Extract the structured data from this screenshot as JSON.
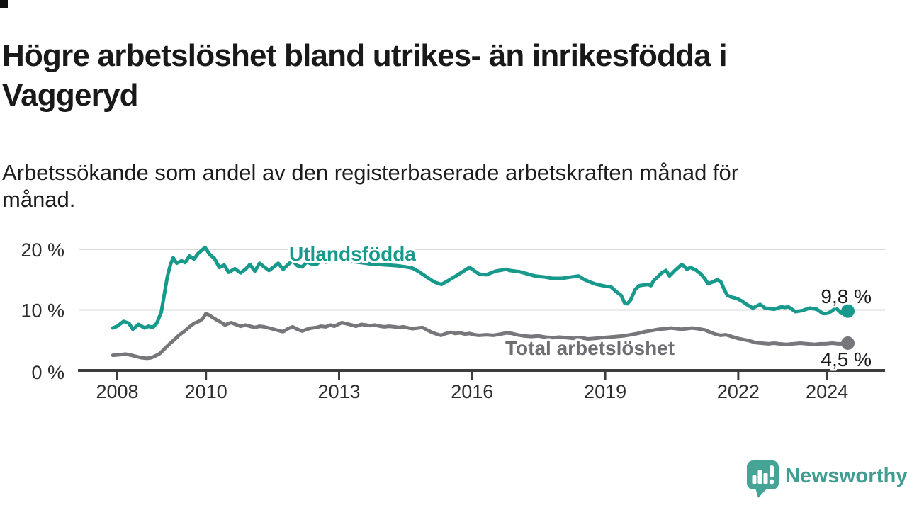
{
  "header": {
    "title": "Högre arbetslöshet bland utrikes- än inrikesfödda i\nVaggeryd",
    "subtitle": "Arbetssökande som andel av den registerbaserade arbetskraften månad för\nmånad."
  },
  "branding": {
    "logo_text": "Newsworthy",
    "logo_icon": "newsworthy-speech-bubble-bar-chart-icon",
    "logo_text_color": "#3f9d92",
    "logo_icon_color": "#46a497"
  },
  "colors": {
    "background": "#ffffff",
    "grid": "#d9d9d9",
    "axis": "#3d3d3d",
    "axis_text": "#2d2d2d",
    "value_label_text": "#1a1a1a",
    "series_utlandsfodda": "#17998b",
    "series_total": "#76767b",
    "series_total_label": "#6d6d72"
  },
  "chart_data": {
    "type": "line",
    "title": "Högre arbetslöshet bland utrikes- än inrikesfödda i Vaggeryd",
    "subtitle": "Arbetssökande som andel av den registerbaserade arbetskraften månad för månad.",
    "grid": "horizontal",
    "legend_position": "inline-labels",
    "x_axis": {
      "ticks": [
        2008,
        2010,
        2013,
        2016,
        2019,
        2022,
        2024
      ],
      "tick_labels": [
        "2008",
        "2010",
        "2013",
        "2016",
        "2019",
        "2022",
        "2024"
      ],
      "range": [
        2007.9,
        2024.6
      ]
    },
    "y_axis": {
      "unit": "%",
      "ticks": [
        0,
        10,
        20
      ],
      "tick_labels": [
        "0 %",
        "10 %",
        "20 %"
      ],
      "range": [
        0,
        21.5
      ]
    },
    "series": [
      {
        "name": "Total arbetslöshet",
        "color": "#76767b",
        "end_value": 4.5,
        "end_label": "4,5 %",
        "points": [
          [
            2007.9,
            2.5
          ],
          [
            2008.06,
            2.6
          ],
          [
            2008.19,
            2.7
          ],
          [
            2008.32,
            2.5
          ],
          [
            2008.43,
            2.3
          ],
          [
            2008.54,
            2.1
          ],
          [
            2008.67,
            2.0
          ],
          [
            2008.77,
            2.1
          ],
          [
            2008.86,
            2.4
          ],
          [
            2008.96,
            2.8
          ],
          [
            2009.07,
            3.6
          ],
          [
            2009.18,
            4.4
          ],
          [
            2009.29,
            5.1
          ],
          [
            2009.39,
            5.8
          ],
          [
            2009.5,
            6.4
          ],
          [
            2009.63,
            7.2
          ],
          [
            2009.74,
            7.8
          ],
          [
            2009.84,
            8.1
          ],
          [
            2009.92,
            8.5
          ],
          [
            2010.0,
            9.4
          ],
          [
            2010.08,
            9.1
          ],
          [
            2010.16,
            8.7
          ],
          [
            2010.25,
            8.3
          ],
          [
            2010.35,
            7.9
          ],
          [
            2010.43,
            7.5
          ],
          [
            2010.49,
            7.7
          ],
          [
            2010.57,
            7.9
          ],
          [
            2010.67,
            7.6
          ],
          [
            2010.78,
            7.3
          ],
          [
            2010.89,
            7.5
          ],
          [
            2010.99,
            7.3
          ],
          [
            2011.1,
            7.1
          ],
          [
            2011.21,
            7.3
          ],
          [
            2011.31,
            7.2
          ],
          [
            2011.42,
            7.0
          ],
          [
            2011.53,
            6.8
          ],
          [
            2011.63,
            6.6
          ],
          [
            2011.74,
            6.4
          ],
          [
            2011.85,
            6.9
          ],
          [
            2011.95,
            7.2
          ],
          [
            2012.06,
            6.8
          ],
          [
            2012.17,
            6.5
          ],
          [
            2012.27,
            6.8
          ],
          [
            2012.38,
            7.0
          ],
          [
            2012.49,
            7.1
          ],
          [
            2012.59,
            7.3
          ],
          [
            2012.7,
            7.2
          ],
          [
            2012.81,
            7.5
          ],
          [
            2012.89,
            7.3
          ],
          [
            2012.98,
            7.6
          ],
          [
            2013.06,
            7.9
          ],
          [
            2013.18,
            7.7
          ],
          [
            2013.29,
            7.5
          ],
          [
            2013.38,
            7.3
          ],
          [
            2013.5,
            7.6
          ],
          [
            2013.61,
            7.5
          ],
          [
            2013.7,
            7.4
          ],
          [
            2013.81,
            7.5
          ],
          [
            2013.93,
            7.3
          ],
          [
            2014.02,
            7.2
          ],
          [
            2014.13,
            7.3
          ],
          [
            2014.25,
            7.2
          ],
          [
            2014.34,
            7.1
          ],
          [
            2014.45,
            7.2
          ],
          [
            2014.57,
            7.0
          ],
          [
            2014.66,
            6.9
          ],
          [
            2014.77,
            7.0
          ],
          [
            2014.88,
            7.1
          ],
          [
            2014.98,
            6.7
          ],
          [
            2015.09,
            6.3
          ],
          [
            2015.2,
            6.0
          ],
          [
            2015.3,
            5.8
          ],
          [
            2015.41,
            6.1
          ],
          [
            2015.52,
            6.3
          ],
          [
            2015.62,
            6.1
          ],
          [
            2015.73,
            6.2
          ],
          [
            2015.84,
            6.0
          ],
          [
            2015.94,
            6.1
          ],
          [
            2016.05,
            5.9
          ],
          [
            2016.16,
            5.8
          ],
          [
            2016.32,
            5.9
          ],
          [
            2016.48,
            5.8
          ],
          [
            2016.64,
            6.0
          ],
          [
            2016.77,
            6.2
          ],
          [
            2016.9,
            6.1
          ],
          [
            2017.01,
            5.9
          ],
          [
            2017.17,
            5.7
          ],
          [
            2017.33,
            5.6
          ],
          [
            2017.49,
            5.7
          ],
          [
            2017.65,
            5.5
          ],
          [
            2017.81,
            5.4
          ],
          [
            2017.97,
            5.5
          ],
          [
            2018.13,
            5.4
          ],
          [
            2018.29,
            5.3
          ],
          [
            2018.45,
            5.4
          ],
          [
            2018.61,
            5.2
          ],
          [
            2018.77,
            5.3
          ],
          [
            2018.93,
            5.4
          ],
          [
            2019.09,
            5.5
          ],
          [
            2019.25,
            5.6
          ],
          [
            2019.41,
            5.7
          ],
          [
            2019.57,
            5.9
          ],
          [
            2019.73,
            6.1
          ],
          [
            2019.89,
            6.4
          ],
          [
            2020.05,
            6.6
          ],
          [
            2020.21,
            6.8
          ],
          [
            2020.37,
            6.9
          ],
          [
            2020.48,
            7.0
          ],
          [
            2020.61,
            6.9
          ],
          [
            2020.72,
            6.8
          ],
          [
            2020.84,
            6.9
          ],
          [
            2020.96,
            7.0
          ],
          [
            2021.08,
            6.9
          ],
          [
            2021.24,
            6.7
          ],
          [
            2021.37,
            6.3
          ],
          [
            2021.48,
            6.0
          ],
          [
            2021.6,
            5.8
          ],
          [
            2021.72,
            5.9
          ],
          [
            2021.85,
            5.6
          ],
          [
            2021.99,
            5.3
          ],
          [
            2022.12,
            5.1
          ],
          [
            2022.25,
            4.9
          ],
          [
            2022.39,
            4.6
          ],
          [
            2022.52,
            4.5
          ],
          [
            2022.68,
            4.4
          ],
          [
            2022.81,
            4.5
          ],
          [
            2022.92,
            4.4
          ],
          [
            2023.08,
            4.3
          ],
          [
            2023.24,
            4.4
          ],
          [
            2023.4,
            4.5
          ],
          [
            2023.56,
            4.4
          ],
          [
            2023.72,
            4.3
          ],
          [
            2023.85,
            4.4
          ],
          [
            2023.97,
            4.4
          ],
          [
            2024.12,
            4.5
          ],
          [
            2024.25,
            4.4
          ],
          [
            2024.36,
            4.4
          ],
          [
            2024.47,
            4.5
          ]
        ]
      },
      {
        "name": "Utlandsfödda",
        "color": "#17998b",
        "end_value": 9.8,
        "end_label": "9,8 %",
        "points": [
          [
            2007.9,
            7.0
          ],
          [
            2008.0,
            7.3
          ],
          [
            2008.14,
            8.1
          ],
          [
            2008.26,
            7.8
          ],
          [
            2008.35,
            6.8
          ],
          [
            2008.48,
            7.6
          ],
          [
            2008.62,
            7.0
          ],
          [
            2008.7,
            7.3
          ],
          [
            2008.8,
            7.1
          ],
          [
            2008.89,
            7.8
          ],
          [
            2008.99,
            9.6
          ],
          [
            2009.07,
            13.0
          ],
          [
            2009.13,
            15.5
          ],
          [
            2009.2,
            17.5
          ],
          [
            2009.26,
            18.6
          ],
          [
            2009.34,
            17.7
          ],
          [
            2009.45,
            18.1
          ],
          [
            2009.53,
            17.8
          ],
          [
            2009.63,
            18.9
          ],
          [
            2009.73,
            18.4
          ],
          [
            2009.82,
            19.3
          ],
          [
            2009.9,
            19.8
          ],
          [
            2009.98,
            20.3
          ],
          [
            2010.09,
            19.1
          ],
          [
            2010.19,
            18.5
          ],
          [
            2010.3,
            17.0
          ],
          [
            2010.41,
            17.4
          ],
          [
            2010.51,
            16.2
          ],
          [
            2010.65,
            16.8
          ],
          [
            2010.78,
            16.1
          ],
          [
            2010.89,
            16.7
          ],
          [
            2010.99,
            17.5
          ],
          [
            2011.1,
            16.4
          ],
          [
            2011.21,
            17.7
          ],
          [
            2011.31,
            17.1
          ],
          [
            2011.42,
            16.5
          ],
          [
            2011.53,
            17.1
          ],
          [
            2011.63,
            17.7
          ],
          [
            2011.74,
            16.7
          ],
          [
            2011.85,
            17.5
          ],
          [
            2011.95,
            18.1
          ],
          [
            2012.06,
            17.3
          ],
          [
            2012.17,
            17.1
          ],
          [
            2012.27,
            17.9
          ],
          [
            2012.38,
            17.6
          ],
          [
            2012.49,
            17.5
          ],
          [
            2012.59,
            18.2
          ],
          [
            2012.7,
            17.9
          ],
          [
            2012.81,
            18.0
          ],
          [
            2012.89,
            18.5
          ],
          [
            2013.1,
            18.2
          ],
          [
            2013.3,
            18.0
          ],
          [
            2013.5,
            17.8
          ],
          [
            2013.7,
            17.6
          ],
          [
            2013.9,
            17.5
          ],
          [
            2014.1,
            17.4
          ],
          [
            2014.3,
            17.3
          ],
          [
            2014.5,
            17.1
          ],
          [
            2014.65,
            16.9
          ],
          [
            2014.8,
            16.3
          ],
          [
            2015.0,
            15.3
          ],
          [
            2015.15,
            14.6
          ],
          [
            2015.31,
            14.2
          ],
          [
            2015.5,
            15.0
          ],
          [
            2015.7,
            15.9
          ],
          [
            2015.94,
            17.0
          ],
          [
            2016.16,
            15.9
          ],
          [
            2016.32,
            15.8
          ],
          [
            2016.53,
            16.4
          ],
          [
            2016.77,
            16.7
          ],
          [
            2016.85,
            16.5
          ],
          [
            2017.06,
            16.3
          ],
          [
            2017.22,
            16.0
          ],
          [
            2017.41,
            15.6
          ],
          [
            2017.65,
            15.4
          ],
          [
            2017.81,
            15.2
          ],
          [
            2018.02,
            15.2
          ],
          [
            2018.21,
            15.4
          ],
          [
            2018.4,
            15.6
          ],
          [
            2018.53,
            15.0
          ],
          [
            2018.69,
            14.5
          ],
          [
            2018.81,
            14.2
          ],
          [
            2019.01,
            13.9
          ],
          [
            2019.13,
            13.8
          ],
          [
            2019.25,
            13.0
          ],
          [
            2019.36,
            12.4
          ],
          [
            2019.44,
            11.1
          ],
          [
            2019.5,
            11.0
          ],
          [
            2019.57,
            11.6
          ],
          [
            2019.68,
            13.4
          ],
          [
            2019.77,
            14.0
          ],
          [
            2019.87,
            14.1
          ],
          [
            2019.97,
            14.2
          ],
          [
            2020.03,
            14.0
          ],
          [
            2020.09,
            14.8
          ],
          [
            2020.19,
            15.5
          ],
          [
            2020.27,
            16.1
          ],
          [
            2020.37,
            16.5
          ],
          [
            2020.45,
            15.6
          ],
          [
            2020.57,
            16.5
          ],
          [
            2020.65,
            17.0
          ],
          [
            2020.72,
            17.5
          ],
          [
            2020.78,
            17.2
          ],
          [
            2020.84,
            16.7
          ],
          [
            2020.92,
            17.0
          ],
          [
            2021.04,
            16.6
          ],
          [
            2021.16,
            15.9
          ],
          [
            2021.26,
            15.0
          ],
          [
            2021.32,
            14.3
          ],
          [
            2021.42,
            14.6
          ],
          [
            2021.53,
            15.0
          ],
          [
            2021.61,
            14.6
          ],
          [
            2021.67,
            13.6
          ],
          [
            2021.75,
            12.4
          ],
          [
            2021.85,
            12.1
          ],
          [
            2021.91,
            12.0
          ],
          [
            2021.99,
            11.8
          ],
          [
            2022.07,
            11.5
          ],
          [
            2022.15,
            11.1
          ],
          [
            2022.23,
            10.7
          ],
          [
            2022.33,
            10.3
          ],
          [
            2022.41,
            10.6
          ],
          [
            2022.49,
            10.9
          ],
          [
            2022.55,
            10.6
          ],
          [
            2022.6,
            10.3
          ],
          [
            2022.7,
            10.2
          ],
          [
            2022.81,
            10.1
          ],
          [
            2022.89,
            10.3
          ],
          [
            2022.97,
            10.5
          ],
          [
            2023.05,
            10.4
          ],
          [
            2023.13,
            10.5
          ],
          [
            2023.21,
            10.1
          ],
          [
            2023.29,
            9.7
          ],
          [
            2023.37,
            9.8
          ],
          [
            2023.45,
            9.9
          ],
          [
            2023.53,
            10.1
          ],
          [
            2023.61,
            10.3
          ],
          [
            2023.69,
            10.2
          ],
          [
            2023.77,
            10.1
          ],
          [
            2023.85,
            9.7
          ],
          [
            2023.91,
            9.4
          ],
          [
            2023.97,
            9.4
          ],
          [
            2024.04,
            9.5
          ],
          [
            2024.12,
            9.9
          ],
          [
            2024.2,
            10.3
          ],
          [
            2024.26,
            9.9
          ],
          [
            2024.33,
            9.4
          ],
          [
            2024.39,
            9.5
          ],
          [
            2024.47,
            9.8
          ]
        ]
      }
    ]
  }
}
